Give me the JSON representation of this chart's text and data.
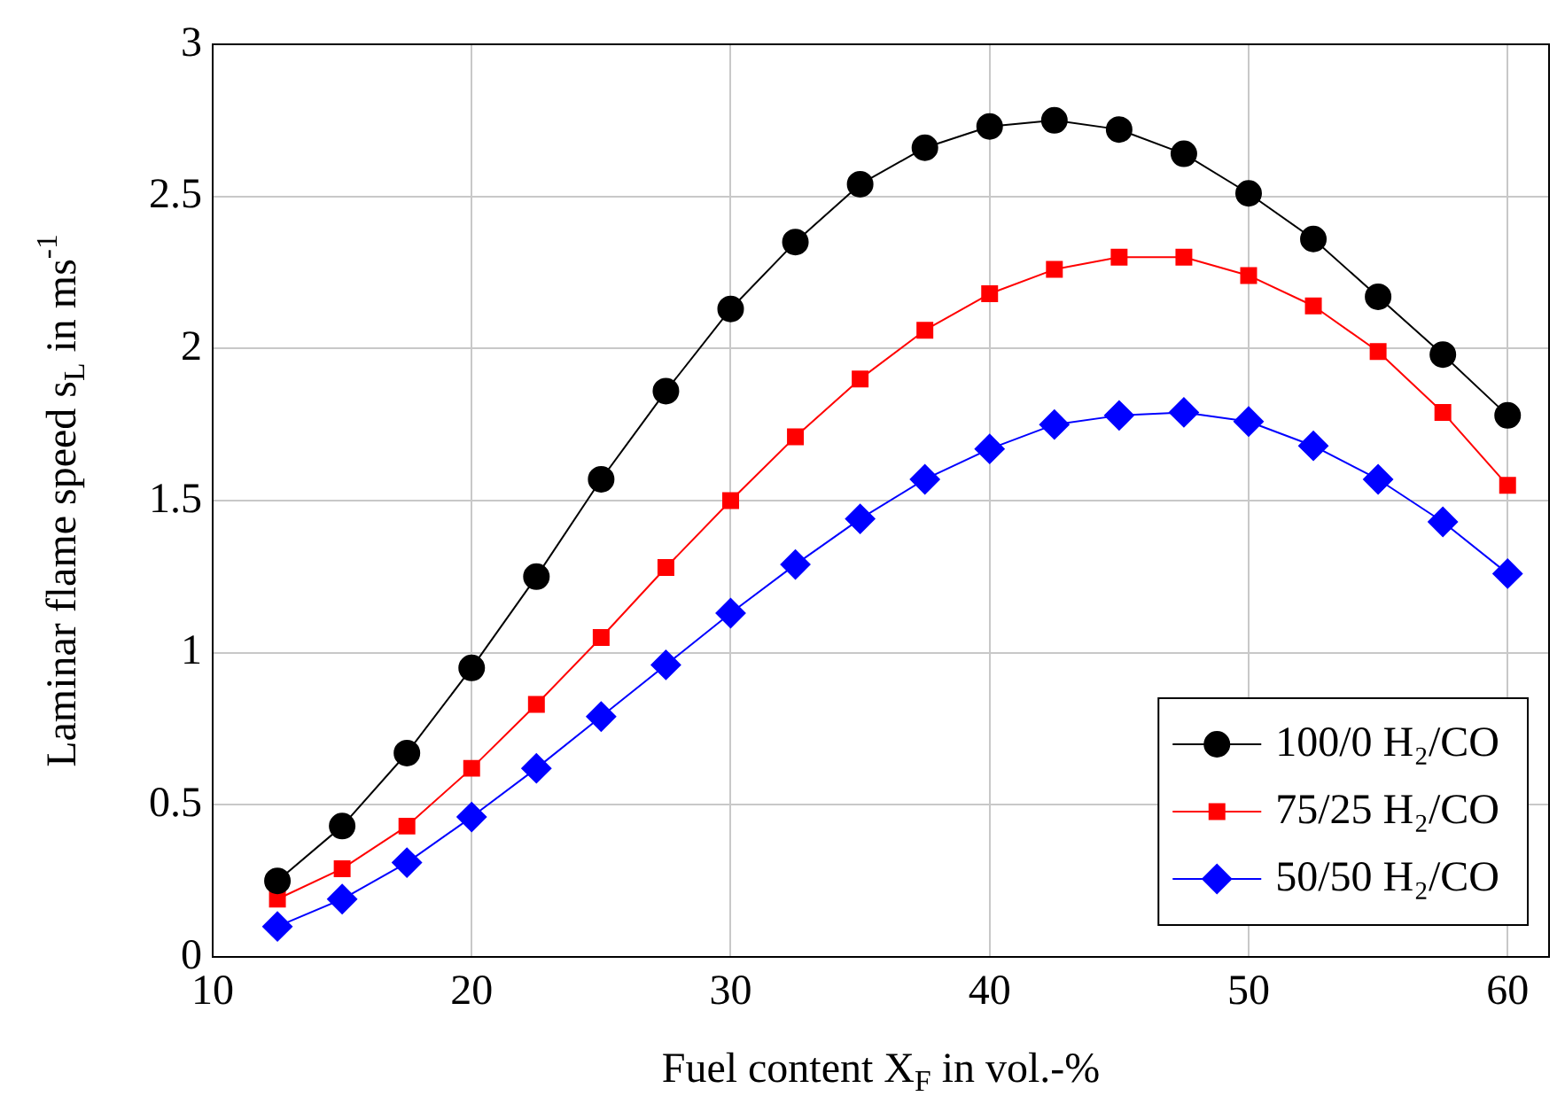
{
  "chart_data": {
    "type": "line",
    "xlabel": "Fuel content X$_{F}$ in vol.-%",
    "ylabel": "Laminar flame speed s$_{L}$ in ms$^{-1}$",
    "x": [
      12.5,
      15,
      17.5,
      20,
      22.5,
      25,
      27.5,
      30,
      32.5,
      35,
      37.5,
      40,
      42.5,
      45,
      47.5,
      50,
      52.5,
      55,
      57.5,
      60
    ],
    "series": [
      {
        "name": "100/0 H₂/CO",
        "color": "#000000",
        "marker": "circle",
        "values": [
          0.25,
          0.43,
          0.67,
          0.95,
          1.25,
          1.57,
          1.86,
          2.13,
          2.35,
          2.54,
          2.66,
          2.73,
          2.75,
          2.72,
          2.64,
          2.51,
          2.36,
          2.17,
          1.98,
          1.78
        ]
      },
      {
        "name": "75/25 H₂/CO",
        "color": "#ff0000",
        "marker": "square",
        "values": [
          0.19,
          0.29,
          0.43,
          0.62,
          0.83,
          1.05,
          1.28,
          1.5,
          1.71,
          1.9,
          2.06,
          2.18,
          2.26,
          2.3,
          2.3,
          2.24,
          2.14,
          1.99,
          1.79,
          1.55
        ]
      },
      {
        "name": "50/50 H₂/CO",
        "color": "#0000ff",
        "marker": "diamond",
        "values": [
          0.1,
          0.19,
          0.31,
          0.46,
          0.62,
          0.79,
          0.96,
          1.13,
          1.29,
          1.44,
          1.57,
          1.67,
          1.75,
          1.78,
          1.79,
          1.76,
          1.68,
          1.57,
          1.43,
          1.26
        ]
      }
    ],
    "xlim": [
      10,
      61.6
    ],
    "xticks": [
      10,
      20,
      30,
      40,
      50,
      60
    ],
    "ylim": [
      0,
      3
    ],
    "yticks": [
      0,
      0.5,
      1,
      1.5,
      2,
      2.5,
      3
    ],
    "grid": true,
    "legend": "bottom right",
    "line_style": "solid"
  }
}
